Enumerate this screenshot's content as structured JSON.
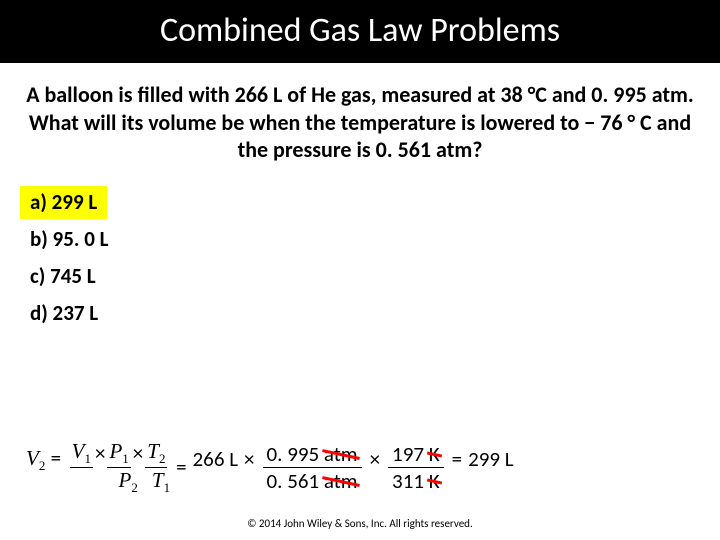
{
  "title": "Combined Gas Law Problems",
  "question": "A balloon is filled with 266 L of He gas, measured at 38 °C and 0. 995 atm. What will its volume be when the temperature is lowered to − 76 ° C and the pressure is  0. 561 atm?",
  "options": {
    "a": "a) 299 L",
    "b": "b) 95. 0 L",
    "c": "c) 745 L",
    "d": "d) 237 L"
  },
  "highlighted_option": "a",
  "equation": {
    "lhs_var": "V",
    "lhs_sub": "2",
    "v1": "V",
    "v1s": "1",
    "p1": "P",
    "p1s": "1",
    "t2": "T",
    "t2s": "2",
    "p2": "P",
    "p2s": "2",
    "t1": "T",
    "t1s": "1",
    "val_266": "266 L",
    "num1": "0. 995",
    "unit1": "atm",
    "den1": "0. 561",
    "unit1d": "atm",
    "num2": "197",
    "unit2": "K",
    "den2": "311",
    "unit2d": "K",
    "result": "299 L",
    "eq": "=",
    "times": "×"
  },
  "colors": {
    "highlight": "#ffff00",
    "strike": "#ff0000",
    "title_bg": "#000000",
    "title_fg": "#ffffff"
  },
  "copyright": "© 2014 John Wiley & Sons, Inc. All rights reserved."
}
